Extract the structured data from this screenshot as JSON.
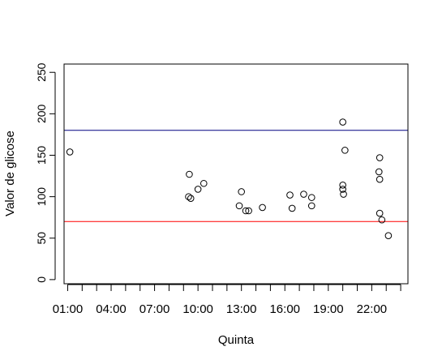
{
  "chart_data": {
    "type": "scatter",
    "title": "",
    "xlabel": "Quinta",
    "ylabel": "Valor de glicose",
    "x_unit": "hours of day",
    "xlim": [
      0.75,
      24.5
    ],
    "ylim": [
      -5,
      260
    ],
    "x_ticks_hours": [
      1,
      2,
      3,
      4,
      5,
      6,
      7,
      8,
      9,
      10,
      11,
      12,
      13,
      14,
      15,
      16,
      17,
      18,
      19,
      20,
      21,
      22,
      23,
      24
    ],
    "x_tick_labels": [
      {
        "hour": 1,
        "label": "01:00"
      },
      {
        "hour": 4,
        "label": "04:00"
      },
      {
        "hour": 7,
        "label": "07:00"
      },
      {
        "hour": 10,
        "label": "10:00"
      },
      {
        "hour": 13,
        "label": "13:00"
      },
      {
        "hour": 16,
        "label": "16:00"
      },
      {
        "hour": 19,
        "label": "19:00"
      },
      {
        "hour": 22,
        "label": "22:00"
      }
    ],
    "y_ticks": [
      0,
      50,
      100,
      150,
      200,
      250
    ],
    "y_tick_labels": [
      "0",
      "50",
      "100",
      "150",
      "200",
      "250"
    ],
    "reference_lines": [
      {
        "y": 180,
        "color": "#000080"
      },
      {
        "y": 70,
        "color": "#ff0000"
      }
    ],
    "points": [
      {
        "x": 1.15,
        "y": 154
      },
      {
        "x": 9.4,
        "y": 127
      },
      {
        "x": 9.35,
        "y": 100
      },
      {
        "x": 9.5,
        "y": 98
      },
      {
        "x": 10.0,
        "y": 109
      },
      {
        "x": 10.4,
        "y": 116
      },
      {
        "x": 12.85,
        "y": 89
      },
      {
        "x": 13.0,
        "y": 106
      },
      {
        "x": 13.3,
        "y": 83
      },
      {
        "x": 13.5,
        "y": 83
      },
      {
        "x": 14.45,
        "y": 87
      },
      {
        "x": 16.35,
        "y": 102
      },
      {
        "x": 16.5,
        "y": 86
      },
      {
        "x": 17.3,
        "y": 103
      },
      {
        "x": 17.85,
        "y": 99
      },
      {
        "x": 17.85,
        "y": 89
      },
      {
        "x": 20.0,
        "y": 190
      },
      {
        "x": 20.15,
        "y": 156
      },
      {
        "x": 20.0,
        "y": 114
      },
      {
        "x": 20.0,
        "y": 109
      },
      {
        "x": 20.05,
        "y": 103
      },
      {
        "x": 22.55,
        "y": 147
      },
      {
        "x": 22.5,
        "y": 130
      },
      {
        "x": 22.55,
        "y": 121
      },
      {
        "x": 22.55,
        "y": 80
      },
      {
        "x": 22.7,
        "y": 72
      },
      {
        "x": 23.15,
        "y": 53
      }
    ]
  }
}
